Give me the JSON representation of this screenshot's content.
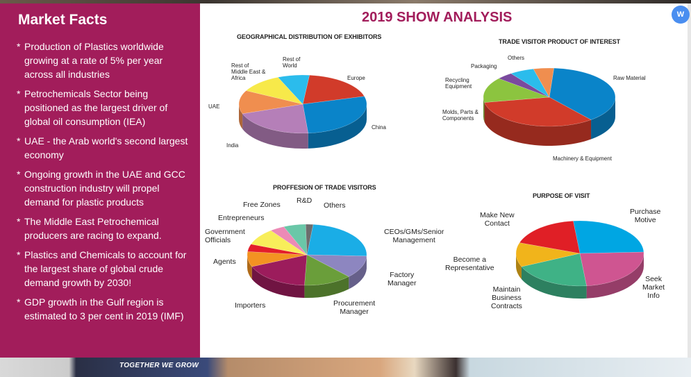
{
  "left_panel": {
    "title": "Market Facts",
    "facts": [
      "Production of Plastics worldwide growing at a rate of  5% per year across all industries",
      "Petrochemicals Sector being positioned as the largest driver of global oil consumption (IEA)",
      "UAE - the Arab world's second largest economy",
      "Ongoing growth in the UAE and GCC construction industry will propel demand  for plastic products",
      "The Middle East Petrochemical producers are racing to expand.",
      "Plastics and Chemicals to account for the largest share of global crude demand growth by 2030!",
      "GDP growth in the Gulf region is estimated to 3 per cent in 2019 (IMF)"
    ]
  },
  "main_title": "2019 SHOW ANALYSIS",
  "photo_strip": {
    "slogan": "TOGETHER WE GROW"
  },
  "extension_button": {
    "icon": "translate-icon",
    "glyph": "W"
  },
  "colors": {
    "brand": "#a21d5b"
  },
  "chart_data": [
    {
      "type": "pie",
      "title": "GEOGRAPHICAL DISTRIBUTION OF EXHIBITORS",
      "categories": [
        "Europe",
        "China",
        "India",
        "UAE",
        "Rest of\nMiddle East &\nAfrica",
        "Rest of\nWorld"
      ],
      "values": [
        19,
        28,
        21,
        13,
        11,
        8
      ],
      "colors": [
        "#d13b2a",
        "#0a84c9",
        "#b57fb8",
        "#f08e4f",
        "#f7e94a",
        "#2bbcec"
      ]
    },
    {
      "type": "pie",
      "title": "TRADE VISITOR PRODUCT OF INTEREST",
      "categories": [
        "Raw Material",
        "Machinery & Equipment",
        "Molds, Parts &\nComponents",
        "Recycling\nEquipment",
        "Packaging",
        "Others"
      ],
      "values": [
        38,
        33,
        14,
        4,
        6,
        5
      ],
      "colors": [
        "#0a84c9",
        "#d13b2a",
        "#8cc43f",
        "#7a4a9e",
        "#2bbcec",
        "#f08e4f"
      ]
    },
    {
      "type": "pie",
      "title": "PROFFESION OF TRADE VISITORS",
      "categories": [
        "CEOs/GMs/Senior\nManagement",
        "Factory\nManager",
        "Procurement\nManager",
        "Importers",
        "Agents",
        "Government\nOfficials",
        "Entrepreneurs",
        "Free Zones",
        "R&D",
        "Others"
      ],
      "values": [
        24,
        12,
        13,
        18,
        8,
        4,
        9,
        4,
        6,
        2
      ],
      "colors": [
        "#1aade6",
        "#8d86c0",
        "#6a9e3a",
        "#9c1c5c",
        "#f39322",
        "#e31e2a",
        "#f8ee5a",
        "#ec8ab6",
        "#6ac7a8",
        "#6d6d6d"
      ]
    },
    {
      "type": "pie",
      "title": "PURPOSE OF VISIT",
      "categories": [
        "Purchase\nMotive",
        "Seek\nMarket\nInfo",
        "Maintain\nBusiness\nContracts",
        "Become a\nRepresentative",
        "Make New\nContact"
      ],
      "values": [
        26,
        24,
        20,
        12,
        18
      ],
      "colors": [
        "#00a6e3",
        "#cf5591",
        "#3fb286",
        "#f1b41b",
        "#e01f26"
      ]
    }
  ]
}
